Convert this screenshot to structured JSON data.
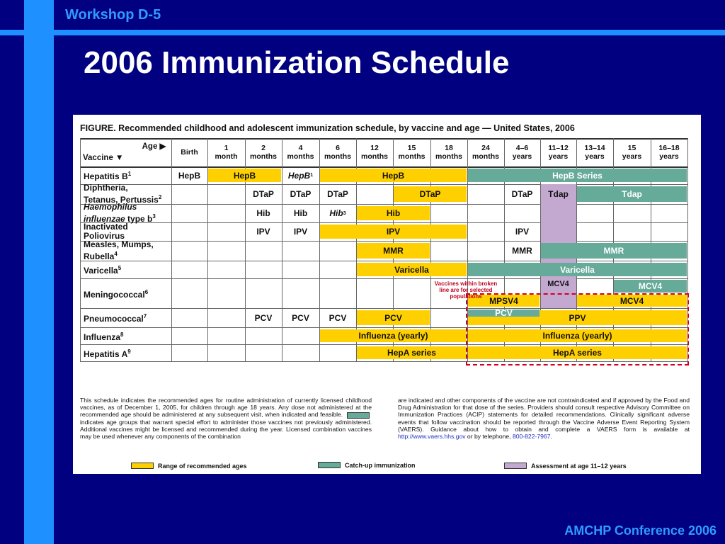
{
  "slide": {
    "header": "Workshop D-5",
    "title": "2006 Immunization Schedule",
    "footer": "AMCHP Conference 2006"
  },
  "figure": {
    "caption": "FIGURE. Recommended childhood and adolescent immunization schedule, by vaccine and age — United States, 2006",
    "corner_age": "Age ▶",
    "corner_vaccine": "Vaccine ▼",
    "age_columns": [
      {
        "l1": "Birth",
        "l2": ""
      },
      {
        "l1": "1",
        "l2": "month"
      },
      {
        "l1": "2",
        "l2": "months"
      },
      {
        "l1": "4",
        "l2": "months"
      },
      {
        "l1": "6",
        "l2": "months"
      },
      {
        "l1": "12",
        "l2": "months"
      },
      {
        "l1": "15",
        "l2": "months"
      },
      {
        "l1": "18",
        "l2": "months"
      },
      {
        "l1": "24",
        "l2": "months"
      },
      {
        "l1": "4–6",
        "l2": "years"
      },
      {
        "l1": "11–12",
        "l2": "years"
      },
      {
        "l1": "13–14",
        "l2": "years"
      },
      {
        "l1": "15",
        "l2": "years"
      },
      {
        "l1": "16–18",
        "l2": "years"
      }
    ],
    "vaccines": [
      {
        "a": "Hepatitis B",
        "sup": "1"
      },
      {
        "a": "Diphtheria,",
        "b": "Tetanus, Pertussis",
        "sup": "2"
      },
      {
        "a_i": "Haemophilus",
        "b_i": "influenzae",
        "b": " type b",
        "sup": "3"
      },
      {
        "a": "Inactivated",
        "b": "Poliovirus"
      },
      {
        "a": "Measles, Mumps,",
        "b": "Rubella",
        "sup": "4"
      },
      {
        "a": "Varicella",
        "sup": "5"
      },
      {
        "a": "Meningococcal",
        "sup": "6"
      },
      {
        "a": "Pneumococcal",
        "sup": "7"
      },
      {
        "a": "Influenza",
        "sup": "8"
      },
      {
        "a": "Hepatitis A",
        "sup": "9"
      }
    ],
    "cells": [
      {
        "row": 0,
        "col": 0,
        "text": "HepB"
      },
      {
        "row": 0,
        "col": 3,
        "text": "HepB",
        "sup": "1",
        "italic": true
      },
      {
        "row": 1,
        "col": 2,
        "text": "DTaP"
      },
      {
        "row": 1,
        "col": 3,
        "text": "DTaP"
      },
      {
        "row": 1,
        "col": 4,
        "text": "DTaP"
      },
      {
        "row": 1,
        "col": 9,
        "text": "DTaP"
      },
      {
        "row": 2,
        "col": 2,
        "text": "Hib"
      },
      {
        "row": 2,
        "col": 3,
        "text": "Hib"
      },
      {
        "row": 2,
        "col": 4,
        "text": "Hib",
        "sup": "3",
        "italic": true
      },
      {
        "row": 3,
        "col": 2,
        "text": "IPV"
      },
      {
        "row": 3,
        "col": 3,
        "text": "IPV"
      },
      {
        "row": 3,
        "col": 9,
        "text": "IPV"
      },
      {
        "row": 4,
        "col": 9,
        "text": "MMR"
      },
      {
        "row": 7,
        "col": 2,
        "text": "PCV"
      },
      {
        "row": 7,
        "col": 3,
        "text": "PCV"
      },
      {
        "row": 7,
        "col": 4,
        "text": "PCV"
      }
    ],
    "bars": [
      {
        "row": 0,
        "from": 1,
        "to": 2,
        "color": "yellow",
        "text": "HepB"
      },
      {
        "row": 0,
        "from": 4,
        "to": 7,
        "color": "yellow",
        "text": "HepB"
      },
      {
        "row": 0,
        "from": 8,
        "to": 13,
        "color": "green",
        "text": "HepB Series"
      },
      {
        "row": 1,
        "from": 6,
        "to": 7,
        "color": "yellow",
        "text": "DTaP"
      },
      {
        "row": 1,
        "from": 11,
        "to": 13,
        "color": "green",
        "text": "Tdap"
      },
      {
        "row": 2,
        "from": 5,
        "to": 6,
        "color": "yellow",
        "text": "Hib"
      },
      {
        "row": 3,
        "from": 4,
        "to": 7,
        "color": "yellow",
        "text": "IPV"
      },
      {
        "row": 4,
        "from": 5,
        "to": 6,
        "color": "yellow",
        "text": "MMR"
      },
      {
        "row": 4,
        "from": 10,
        "to": 13,
        "color": "green",
        "text": "MMR"
      },
      {
        "row": 5,
        "from": 5,
        "to": 7,
        "color": "yellow",
        "text": "Varicella"
      },
      {
        "row": 5,
        "from": 8,
        "to": 13,
        "color": "green",
        "text": "Varicella"
      },
      {
        "row": 6,
        "from": 12,
        "to": 13,
        "color": "green",
        "text": "MCV4",
        "half": "top"
      },
      {
        "row": 6,
        "from": 8,
        "to": 9,
        "color": "yellow",
        "text": "MPSV4",
        "half": "bottom"
      },
      {
        "row": 6,
        "from": 11,
        "to": 13,
        "color": "yellow",
        "text": "MCV4",
        "half": "bottom"
      },
      {
        "row": 7,
        "from": 5,
        "to": 6,
        "color": "yellow",
        "text": "PCV"
      },
      {
        "row": 7,
        "from": 8,
        "to": 13,
        "color": "yellow",
        "text": "PPV"
      },
      {
        "row": 7,
        "from": 8,
        "to": 9,
        "color": "green",
        "text": "PCV",
        "half": "top"
      },
      {
        "row": 8,
        "from": 4,
        "to": 7,
        "color": "yellow",
        "text": "Influenza (yearly)"
      },
      {
        "row": 8,
        "from": 8,
        "to": 13,
        "color": "yellow",
        "text": "Influenza (yearly)"
      },
      {
        "row": 9,
        "from": 5,
        "to": 7,
        "color": "yellow",
        "text": "HepA series"
      },
      {
        "row": 9,
        "from": 8,
        "to": 13,
        "color": "yellow",
        "text": "HepA series"
      }
    ],
    "assessment": {
      "text_tdap": "Tdap",
      "text_mcv4": "MCV4"
    },
    "selected_note": "Vaccines within broken line are for selected populations",
    "para_left": "This schedule indicates the recommended ages for routine administration of currently licensed childhood vaccines, as of December 1, 2005, for children through age 18 years. Any dose not administered at the recommended age should be administered at any subsequent visit, when indicated and feasible.",
    "para_left_2": "indicates age groups that warrant special effort to administer those vaccines not previously administered. Additional vaccines might be licensed and recommended during the year. Licensed combination vaccines may be used whenever any components of the combination",
    "para_right": "are indicated and other components of the vaccine are not contraindicated and if approved by the Food and Drug Administration for that dose of the series. Providers should consult respective Advisory Committee on Immunization Practices (ACIP) statements for detailed recommendations. Clinically significant adverse events that follow vaccination should be reported through the Vaccine Adverse Event Reporting System (VAERS). Guidance about how to obtain and complete a VAERS form is available at",
    "para_right_link": "http://www.vaers.hhs.gov",
    "para_right_tail": "or by telephone,",
    "para_right_phone": "800-822-7967",
    "legend": [
      {
        "color": "#FFD000",
        "label": "Range of recommended ages"
      },
      {
        "color": "#66AA99",
        "label": "Catch-up immunization"
      },
      {
        "color": "#C3A9D0",
        "label": "Assessment at age 11–12 years"
      }
    ]
  }
}
